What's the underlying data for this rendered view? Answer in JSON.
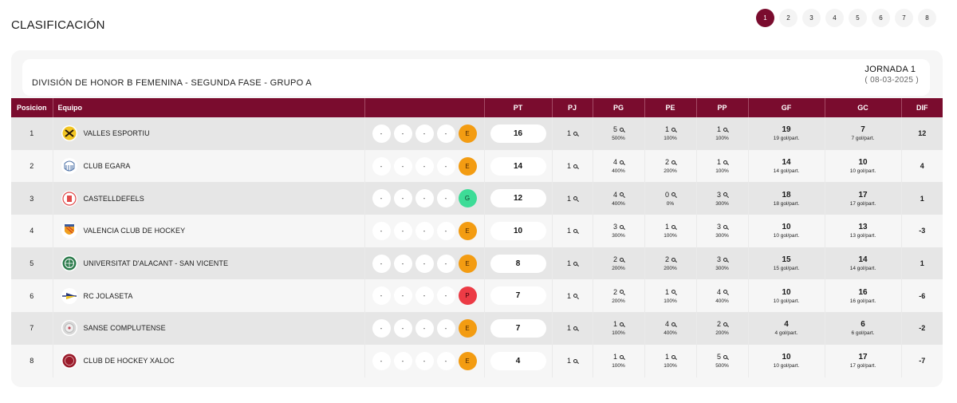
{
  "page": {
    "title": "CLASIFICACIÓN"
  },
  "pagination": {
    "pages": [
      "1",
      "2",
      "3",
      "4",
      "5",
      "6",
      "7",
      "8"
    ],
    "active": "1",
    "active_color": "#7a0c2e"
  },
  "competition": {
    "title": "DIVISIÓN DE HONOR B FEMENINA - SEGUNDA FASE - GRUPO A",
    "jornada": "JORNADA 1",
    "date": "( 08-03-2025 )"
  },
  "table": {
    "header_color": "#7a0c2e",
    "columns": {
      "pos": "Posicion",
      "team": "Equipo",
      "form": "",
      "pt": "PT",
      "pj": "PJ",
      "pg": "PG",
      "pe": "PE",
      "pp": "PP",
      "gf": "GF",
      "gc": "GC",
      "dif": "DIF"
    },
    "result_colors": {
      "E": "#f39c12",
      "G": "#3ddc97",
      "P": "#ec3b45"
    },
    "rows": [
      {
        "pos": "1",
        "team": "VALLES ESPORTIU",
        "logo": "valles-esportiu-logo",
        "form": [
          "-",
          "-",
          "-",
          "-",
          "E"
        ],
        "pt": "16",
        "pj": "1",
        "pg": "5",
        "pg_pct": "500%",
        "pe": "1",
        "pe_pct": "100%",
        "pp": "1",
        "pp_pct": "100%",
        "gf": "19",
        "gf_avg": "19 gol/part.",
        "gc": "7",
        "gc_avg": "7 gol/part.",
        "dif": "12"
      },
      {
        "pos": "2",
        "team": "CLUB EGARA",
        "logo": "club-egara-logo",
        "form": [
          "-",
          "-",
          "-",
          "-",
          "E"
        ],
        "pt": "14",
        "pj": "1",
        "pg": "4",
        "pg_pct": "400%",
        "pe": "2",
        "pe_pct": "200%",
        "pp": "1",
        "pp_pct": "100%",
        "gf": "14",
        "gf_avg": "14 gol/part.",
        "gc": "10",
        "gc_avg": "10 gol/part.",
        "dif": "4"
      },
      {
        "pos": "3",
        "team": "CASTELLDEFELS",
        "logo": "castelldefels-logo",
        "form": [
          "-",
          "-",
          "-",
          "-",
          "G"
        ],
        "pt": "12",
        "pj": "1",
        "pg": "4",
        "pg_pct": "400%",
        "pe": "0",
        "pe_pct": "0%",
        "pp": "3",
        "pp_pct": "300%",
        "gf": "18",
        "gf_avg": "18 gol/part.",
        "gc": "17",
        "gc_avg": "17 gol/part.",
        "dif": "1"
      },
      {
        "pos": "4",
        "team": "VALENCIA CLUB DE HOCKEY",
        "logo": "valencia-hockey-logo",
        "form": [
          "-",
          "-",
          "-",
          "-",
          "E"
        ],
        "pt": "10",
        "pj": "1",
        "pg": "3",
        "pg_pct": "300%",
        "pe": "1",
        "pe_pct": "100%",
        "pp": "3",
        "pp_pct": "300%",
        "gf": "10",
        "gf_avg": "10 gol/part.",
        "gc": "13",
        "gc_avg": "13 gol/part.",
        "dif": "-3"
      },
      {
        "pos": "5",
        "team": "UNIVERSITAT D'ALACANT - SAN VICENTE",
        "logo": "universitat-alacant-logo",
        "form": [
          "-",
          "-",
          "-",
          "-",
          "E"
        ],
        "pt": "8",
        "pj": "1",
        "pg": "2",
        "pg_pct": "200%",
        "pe": "2",
        "pe_pct": "200%",
        "pp": "3",
        "pp_pct": "300%",
        "gf": "15",
        "gf_avg": "15 gol/part.",
        "gc": "14",
        "gc_avg": "14 gol/part.",
        "dif": "1"
      },
      {
        "pos": "6",
        "team": "RC JOLASETA",
        "logo": "rc-jolaseta-logo",
        "form": [
          "-",
          "-",
          "-",
          "-",
          "P"
        ],
        "pt": "7",
        "pj": "1",
        "pg": "2",
        "pg_pct": "200%",
        "pe": "1",
        "pe_pct": "100%",
        "pp": "4",
        "pp_pct": "400%",
        "gf": "10",
        "gf_avg": "10 gol/part.",
        "gc": "16",
        "gc_avg": "16 gol/part.",
        "dif": "-6"
      },
      {
        "pos": "7",
        "team": "SANSE COMPLUTENSE",
        "logo": "sanse-complutense-logo",
        "form": [
          "-",
          "-",
          "-",
          "-",
          "E"
        ],
        "pt": "7",
        "pj": "1",
        "pg": "1",
        "pg_pct": "100%",
        "pe": "4",
        "pe_pct": "400%",
        "pp": "2",
        "pp_pct": "200%",
        "gf": "4",
        "gf_avg": "4 gol/part.",
        "gc": "6",
        "gc_avg": "6 gol/part.",
        "dif": "-2"
      },
      {
        "pos": "8",
        "team": "CLUB DE HOCKEY XALOC",
        "logo": "xaloc-hockey-logo",
        "form": [
          "-",
          "-",
          "-",
          "-",
          "E"
        ],
        "pt": "4",
        "pj": "1",
        "pg": "1",
        "pg_pct": "100%",
        "pe": "1",
        "pe_pct": "100%",
        "pp": "5",
        "pp_pct": "500%",
        "gf": "10",
        "gf_avg": "10 gol/part.",
        "gc": "17",
        "gc_avg": "17 gol/part.",
        "dif": "-7"
      }
    ]
  }
}
